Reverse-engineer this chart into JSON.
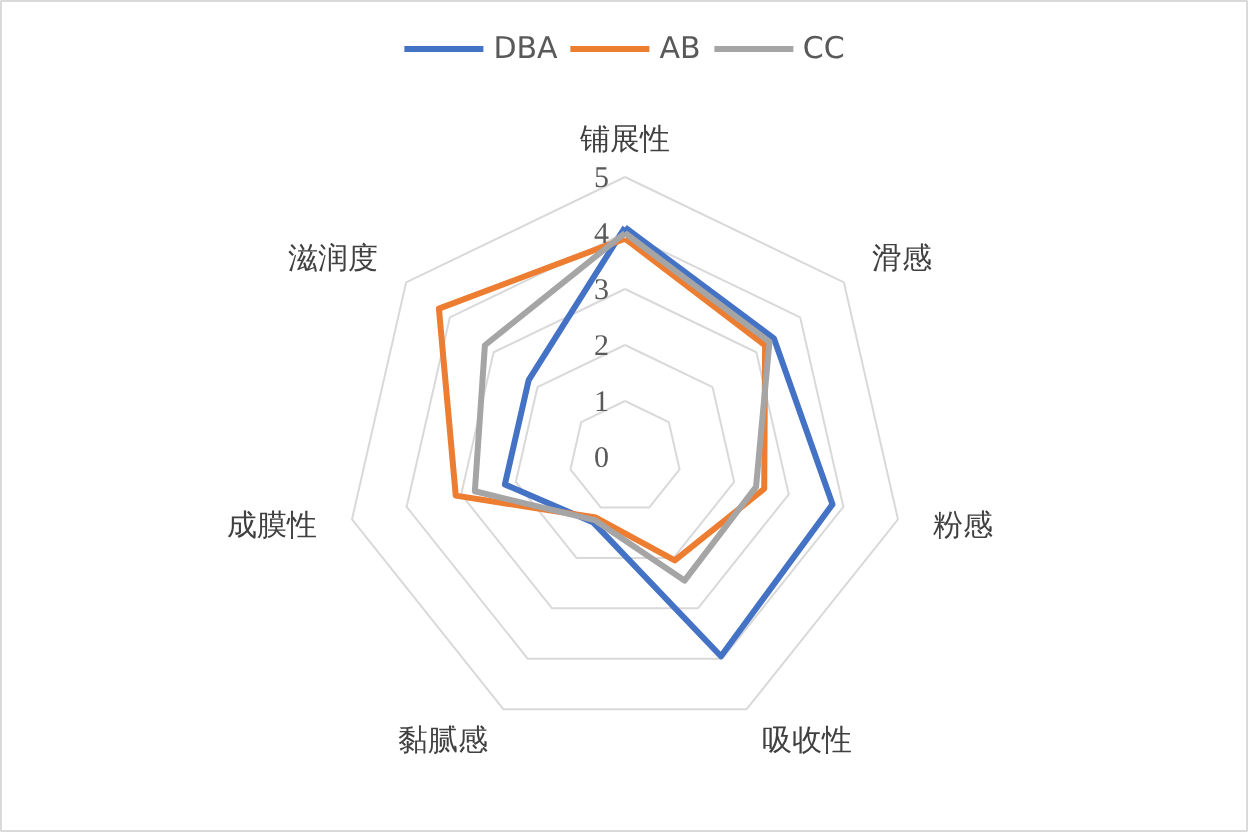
{
  "chart_data": {
    "type": "radar",
    "categories": [
      "铺展性",
      "滑感",
      "粉感",
      "吸收性",
      "黏腻感",
      "成膜性",
      "滋润度"
    ],
    "series": [
      {
        "name": "DBA",
        "color": "#4472c4",
        "values": [
          4.1,
          3.4,
          3.8,
          3.95,
          1.3,
          2.2,
          2.2
        ]
      },
      {
        "name": "AB",
        "color": "#ed7d31",
        "values": [
          3.9,
          3.2,
          2.55,
          2.05,
          1.2,
          3.1,
          4.25
        ]
      },
      {
        "name": "CC",
        "color": "#a5a5a5",
        "values": [
          4.0,
          3.3,
          2.4,
          2.45,
          1.25,
          2.75,
          3.2
        ]
      }
    ],
    "ylim": [
      0,
      5
    ],
    "yticks": [
      0,
      1,
      2,
      3,
      4,
      5
    ],
    "grid": true,
    "legend": "top"
  }
}
